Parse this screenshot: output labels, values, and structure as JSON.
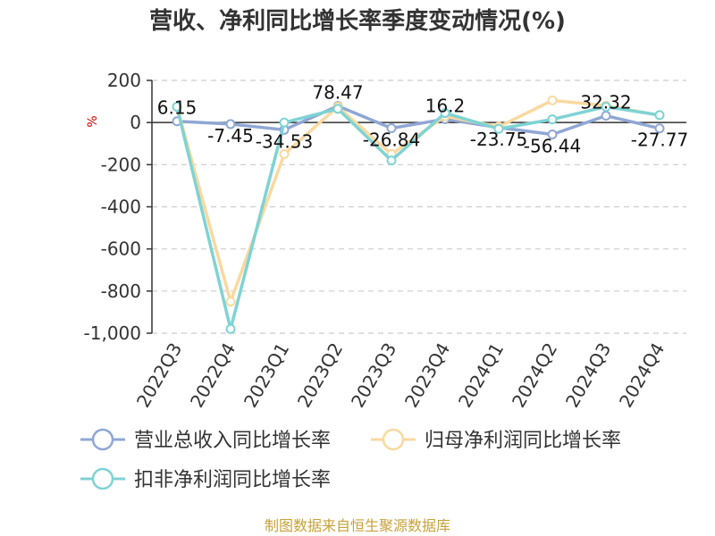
{
  "chart_data": {
    "type": "line",
    "title": "营收、净利同比增长率季度变动情况(%)",
    "unit_label": "%",
    "categories": [
      "2022Q3",
      "2022Q4",
      "2023Q1",
      "2023Q2",
      "2023Q3",
      "2023Q4",
      "2024Q1",
      "2024Q2",
      "2024Q3",
      "2024Q4"
    ],
    "ylim": [
      -1000,
      200
    ],
    "yticks": [
      200,
      0,
      -200,
      -400,
      -600,
      -800,
      -1000
    ],
    "ytick_labels": [
      "200",
      "0",
      "-200",
      "-400",
      "-600",
      "-800",
      "-1,000"
    ],
    "grid": true,
    "legend_position": "bottom",
    "series": [
      {
        "name": "营业总收入同比增长率",
        "color": "#8fa7d4",
        "values": [
          6.15,
          -7.45,
          -34.53,
          78.47,
          -26.84,
          16.2,
          -23.75,
          -56.44,
          32.32,
          -27.77
        ]
      },
      {
        "name": "归母净利润同比增长率",
        "color": "#f9d9a0",
        "values": [
          75,
          -850,
          -150,
          75,
          -150,
          30,
          -20,
          105,
          80,
          35
        ]
      },
      {
        "name": "扣非净利润同比增长率",
        "color": "#7fd3d3",
        "values": [
          75,
          -980,
          0,
          65,
          -180,
          45,
          -30,
          15,
          75,
          35
        ]
      }
    ],
    "data_labels": [
      {
        "category": "2022Q3",
        "text": "6.15"
      },
      {
        "category": "2022Q4",
        "text": "-7.45"
      },
      {
        "category": "2023Q1",
        "text": "-34.53"
      },
      {
        "category": "2023Q2",
        "text": "78.47"
      },
      {
        "category": "2023Q3",
        "text": "-26.84"
      },
      {
        "category": "2023Q4",
        "text": "16.2"
      },
      {
        "category": "2024Q1",
        "text": "-23.75"
      },
      {
        "category": "2024Q2",
        "text": "-56.44"
      },
      {
        "category": "2024Q3",
        "text": "32.32"
      },
      {
        "category": "2024Q4",
        "text": "-27.77"
      }
    ]
  },
  "footer": {
    "source": "制图数据来自恒生聚源数据库"
  }
}
